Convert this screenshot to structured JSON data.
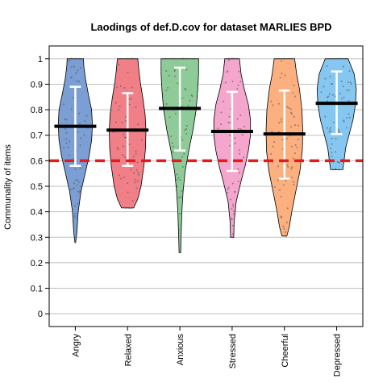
{
  "chart_data": {
    "type": "violin",
    "title": "Laodings of def.D.cov for dataset MARLIES BPD",
    "xlabel": "",
    "ylabel": "Communality of items",
    "ylim": [
      -0.05,
      1.05
    ],
    "yticks": [
      0,
      0.1,
      0.2,
      0.3,
      0.4,
      0.5,
      0.6,
      0.7,
      0.8,
      0.9,
      1
    ],
    "ytick_labels": [
      "0",
      "0.1",
      "0.2",
      "0.3",
      "0.4",
      "0.5",
      "0.6",
      "0.7",
      "0.8",
      "0.9",
      "1"
    ],
    "grid": true,
    "threshold": {
      "value": 0.6,
      "color": "#e41a1c",
      "style": "dashed"
    },
    "categories": [
      "Angry",
      "Relaxed",
      "Anxious",
      "Stressed",
      "Cheerful",
      "Depressed"
    ],
    "series": [
      {
        "color": "#7b9fd4",
        "min": 0.28,
        "max": 1.0,
        "mean": 0.735,
        "sd_low": 0.58,
        "sd_high": 0.89,
        "shape": [
          [
            0.28,
            0.01
          ],
          [
            0.32,
            0.04
          ],
          [
            0.4,
            0.07
          ],
          [
            0.48,
            0.14
          ],
          [
            0.55,
            0.24
          ],
          [
            0.62,
            0.34
          ],
          [
            0.68,
            0.4
          ],
          [
            0.74,
            0.42
          ],
          [
            0.8,
            0.4
          ],
          [
            0.86,
            0.32
          ],
          [
            0.92,
            0.25
          ],
          [
            0.97,
            0.21
          ],
          [
            1.0,
            0.2
          ]
        ]
      },
      {
        "color": "#f07f87",
        "min": 0.415,
        "max": 1.0,
        "mean": 0.72,
        "sd_low": 0.58,
        "sd_high": 0.865,
        "shape": [
          [
            0.415,
            0.15
          ],
          [
            0.45,
            0.25
          ],
          [
            0.5,
            0.33
          ],
          [
            0.58,
            0.4
          ],
          [
            0.65,
            0.44
          ],
          [
            0.72,
            0.45
          ],
          [
            0.78,
            0.43
          ],
          [
            0.84,
            0.38
          ],
          [
            0.9,
            0.32
          ],
          [
            0.95,
            0.28
          ],
          [
            1.0,
            0.25
          ]
        ]
      },
      {
        "color": "#8fcb98",
        "min": 0.24,
        "max": 1.0,
        "mean": 0.805,
        "sd_low": 0.64,
        "sd_high": 0.965,
        "shape": [
          [
            0.24,
            0.02
          ],
          [
            0.3,
            0.03
          ],
          [
            0.4,
            0.05
          ],
          [
            0.48,
            0.08
          ],
          [
            0.56,
            0.13
          ],
          [
            0.64,
            0.22
          ],
          [
            0.72,
            0.32
          ],
          [
            0.8,
            0.4
          ],
          [
            0.88,
            0.44
          ],
          [
            0.94,
            0.46
          ],
          [
            1.0,
            0.46
          ]
        ]
      },
      {
        "color": "#f4a6cd",
        "min": 0.3,
        "max": 1.0,
        "mean": 0.715,
        "sd_low": 0.56,
        "sd_high": 0.87,
        "shape": [
          [
            0.3,
            0.04
          ],
          [
            0.36,
            0.05
          ],
          [
            0.44,
            0.1
          ],
          [
            0.52,
            0.22
          ],
          [
            0.58,
            0.32
          ],
          [
            0.64,
            0.4
          ],
          [
            0.7,
            0.45
          ],
          [
            0.76,
            0.45
          ],
          [
            0.82,
            0.4
          ],
          [
            0.88,
            0.3
          ],
          [
            0.94,
            0.22
          ],
          [
            1.0,
            0.18
          ]
        ]
      },
      {
        "color": "#fdb07f",
        "min": 0.305,
        "max": 1.0,
        "mean": 0.705,
        "sd_low": 0.53,
        "sd_high": 0.875,
        "shape": [
          [
            0.305,
            0.06
          ],
          [
            0.34,
            0.12
          ],
          [
            0.4,
            0.18
          ],
          [
            0.48,
            0.28
          ],
          [
            0.56,
            0.38
          ],
          [
            0.64,
            0.44
          ],
          [
            0.72,
            0.45
          ],
          [
            0.8,
            0.43
          ],
          [
            0.88,
            0.37
          ],
          [
            0.94,
            0.3
          ],
          [
            1.0,
            0.25
          ]
        ]
      },
      {
        "color": "#86c7f2",
        "min": 0.565,
        "max": 1.0,
        "mean": 0.825,
        "sd_low": 0.705,
        "sd_high": 0.95,
        "shape": [
          [
            0.565,
            0.15
          ],
          [
            0.6,
            0.18
          ],
          [
            0.65,
            0.22
          ],
          [
            0.7,
            0.3
          ],
          [
            0.76,
            0.4
          ],
          [
            0.82,
            0.46
          ],
          [
            0.88,
            0.48
          ],
          [
            0.94,
            0.43
          ],
          [
            0.98,
            0.33
          ],
          [
            1.0,
            0.28
          ]
        ]
      }
    ]
  }
}
